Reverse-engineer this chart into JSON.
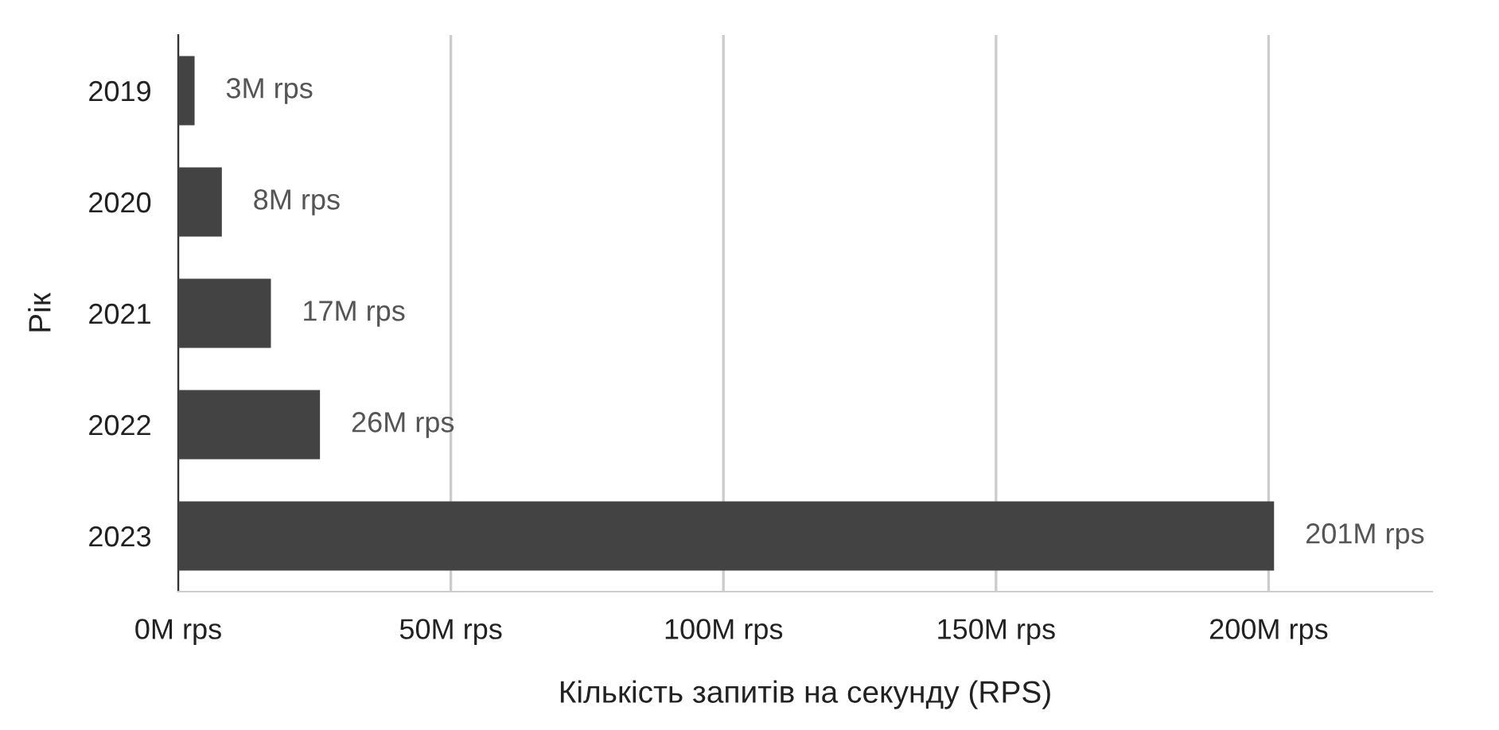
{
  "chart_data": {
    "type": "bar",
    "orientation": "horizontal",
    "categories": [
      "2019",
      "2020",
      "2021",
      "2022",
      "2023"
    ],
    "values": [
      3,
      8,
      17,
      26,
      201
    ],
    "value_labels": [
      "3M rps",
      "8M rps",
      "17M rps",
      "26M rps",
      "201M rps"
    ],
    "color": "#434343",
    "xlabel": "Кількість запитів на секунду (RPS)",
    "ylabel": "Рік",
    "xlim": [
      0,
      230
    ],
    "xticks": [
      {
        "value": 0,
        "label": "0M rps"
      },
      {
        "value": 50,
        "label": "50M rps"
      },
      {
        "value": 100,
        "label": "100M rps"
      },
      {
        "value": 150,
        "label": "150M rps"
      },
      {
        "value": 200,
        "label": "200M rps"
      }
    ],
    "grid": "x"
  }
}
